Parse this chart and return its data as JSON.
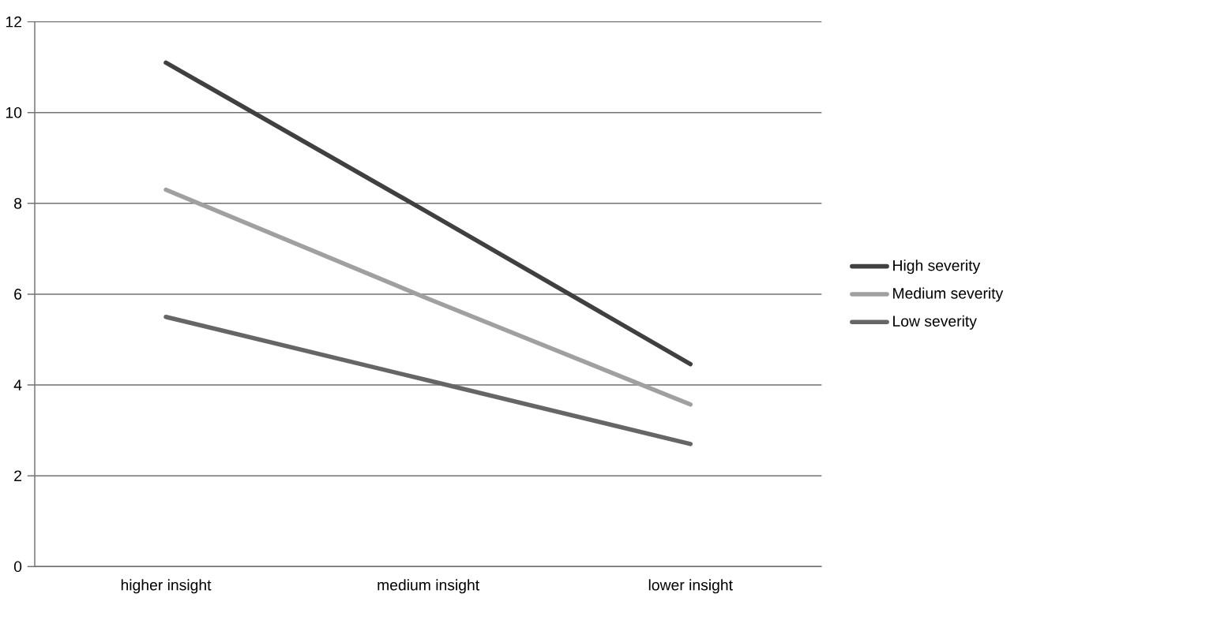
{
  "chart_data": {
    "type": "line",
    "categories": [
      "higher insight",
      "medium insight",
      "lower insight"
    ],
    "series": [
      {
        "name": "High severity",
        "color": "#404040",
        "values": [
          11.1,
          7.8,
          4.46
        ]
      },
      {
        "name": "Medium severity",
        "color": "#a0a0a0",
        "values": [
          8.3,
          5.9,
          3.57
        ]
      },
      {
        "name": "Low severity",
        "color": "#666666",
        "values": [
          5.5,
          4.1,
          2.7
        ]
      }
    ],
    "ylim": [
      0,
      12
    ],
    "yticks": [
      0,
      2,
      4,
      6,
      8,
      10,
      12
    ],
    "grid": "y",
    "legend": "right",
    "marker": "none",
    "line_style": "solid"
  }
}
